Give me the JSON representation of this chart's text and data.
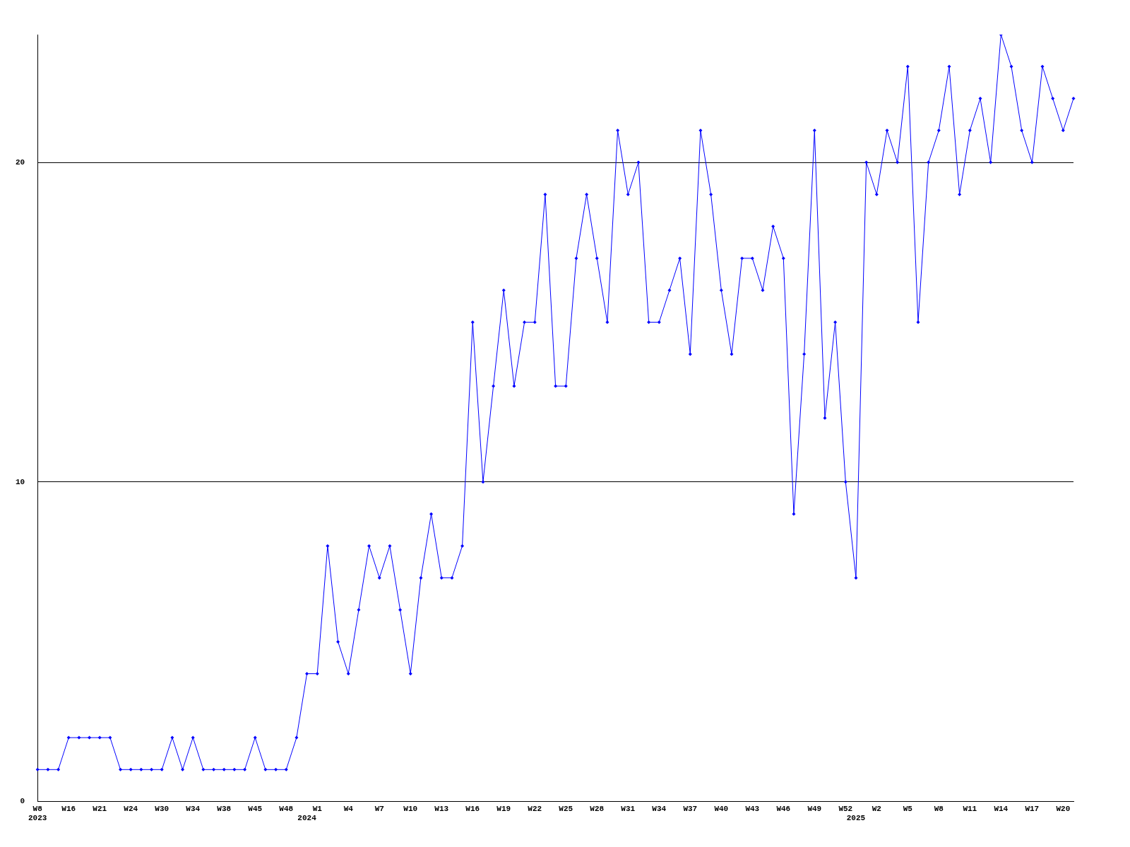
{
  "chart_data": {
    "type": "line",
    "categories": [
      "W8\n2023",
      null,
      null,
      "W16",
      null,
      null,
      "W21",
      null,
      null,
      "W24",
      null,
      null,
      "W30",
      null,
      null,
      "W34",
      null,
      null,
      "W38",
      null,
      null,
      "W45",
      null,
      null,
      "W48",
      null,
      "\n2024",
      "W1",
      null,
      null,
      "W4",
      null,
      null,
      "W7",
      null,
      null,
      "W10",
      null,
      null,
      "W13",
      null,
      null,
      "W16",
      null,
      null,
      "W19",
      null,
      null,
      "W22",
      null,
      null,
      "W25",
      null,
      null,
      "W28",
      null,
      null,
      "W31",
      null,
      null,
      "W34",
      null,
      null,
      "W37",
      null,
      null,
      "W40",
      null,
      null,
      "W43",
      null,
      null,
      "W46",
      null,
      null,
      "W49",
      null,
      null,
      "W52",
      "\n2025",
      null,
      "W2",
      null,
      null,
      "W5",
      null,
      null,
      "W8",
      null,
      null,
      "W11",
      null,
      null,
      "W14",
      null,
      null,
      "W17",
      null,
      null,
      "W20",
      null
    ],
    "series": [
      {
        "color": "#0000ff",
        "values": [
          1,
          1,
          1,
          2,
          2,
          2,
          2,
          2,
          1,
          1,
          1,
          1,
          1,
          2,
          1,
          2,
          1,
          1,
          1,
          1,
          1,
          2,
          1,
          1,
          1,
          2,
          4,
          4,
          8,
          5,
          4,
          6,
          8,
          7,
          8,
          6,
          4,
          7,
          9,
          7,
          7,
          8,
          15,
          10,
          13,
          16,
          13,
          15,
          15,
          19,
          13,
          13,
          17,
          19,
          17,
          15,
          21,
          19,
          20,
          15,
          15,
          16,
          17,
          14,
          21,
          19,
          16,
          14,
          17,
          17,
          16,
          18,
          17,
          9,
          14,
          21,
          12,
          15,
          10,
          7,
          20,
          19,
          21,
          20,
          23,
          15,
          20,
          21,
          23,
          19,
          21,
          22,
          20,
          24,
          23,
          21,
          20,
          23,
          22,
          21,
          22
        ]
      }
    ],
    "ylim": [
      0,
      24
    ],
    "yticks": [
      0,
      10,
      20
    ],
    "grid": "y",
    "legend": false,
    "marker": "diamond",
    "line_style": "solid"
  }
}
